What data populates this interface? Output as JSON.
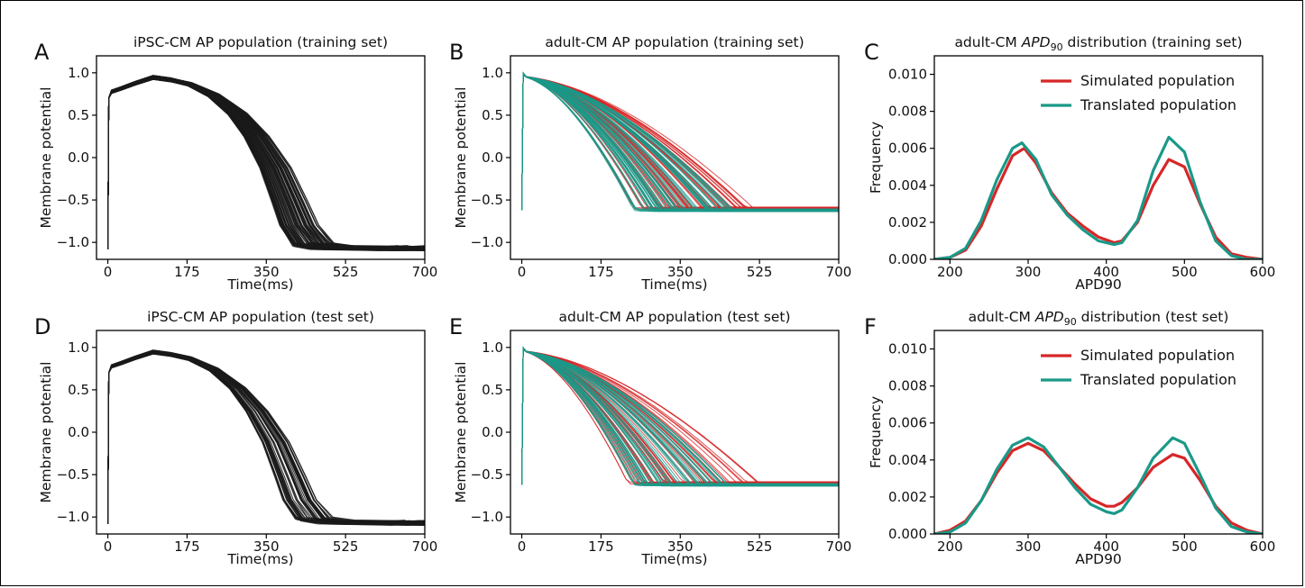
{
  "colors": {
    "ink": "#000000",
    "ipsc": "#1a1a1a",
    "simulated": "#d62728",
    "translated": "#1a9988"
  },
  "chart_data": [
    {
      "type": "line",
      "panel": "A",
      "title": "iPSC-CM AP population (training set)",
      "xlabel": "Time(ms)",
      "ylabel": "Membrane potential",
      "xlim": [
        -25,
        700
      ],
      "ylim": [
        -1.2,
        1.2
      ],
      "xticks": [
        "0",
        "175",
        "350",
        "525",
        "700"
      ],
      "yticks": [
        "-1.0",
        "-0.5",
        "0.0",
        "0.5",
        "1.0"
      ],
      "population": {
        "kind": "ipsc",
        "count": 85,
        "color": "#1a1a1a",
        "template_x": [
          0,
          2,
          8,
          30,
          60,
          100,
          140,
          180,
          230,
          280,
          320,
          360,
          390,
          410,
          440,
          480,
          540,
          600,
          650,
          700
        ],
        "template_y": [
          -1.08,
          0.7,
          0.78,
          0.82,
          0.88,
          0.95,
          0.92,
          0.87,
          0.74,
          0.52,
          0.25,
          -0.12,
          -0.52,
          -0.8,
          -0.98,
          -1.05,
          -1.06,
          -1.07,
          -1.08,
          -1.05
        ],
        "plateau_end_range": [
          0.88,
          1.22
        ],
        "spread": "wide"
      }
    },
    {
      "type": "line",
      "panel": "B",
      "title": "adult-CM AP population (training set)",
      "xlabel": "Time(ms)",
      "ylabel": "Membrane potential",
      "xlim": [
        -25,
        700
      ],
      "ylim": [
        -1.2,
        1.2
      ],
      "xticks": [
        "0",
        "175",
        "350",
        "525",
        "700"
      ],
      "yticks": [
        "-1.0",
        "-0.5",
        "0.0",
        "0.5",
        "1.0"
      ],
      "series": [
        {
          "name": "Simulated population",
          "color": "#d62728",
          "count": 60,
          "apd_range": [
            230,
            520
          ],
          "resting": -0.6
        },
        {
          "name": "Translated population",
          "color": "#1a9988",
          "count": 70,
          "apd_range": [
            240,
            470
          ],
          "resting": -0.62
        }
      ],
      "peak": 1.0,
      "upstroke_min": -0.62
    },
    {
      "type": "line",
      "panel": "C",
      "title": "adult-CM APD90 distribution (training set)",
      "title_parts": [
        "adult-CM ",
        "APD",
        "90",
        " distribution (training set)"
      ],
      "xlabel": "APD90",
      "ylabel": "Frequency",
      "xlim": [
        180,
        600
      ],
      "ylim": [
        0,
        0.011
      ],
      "xticks": [
        "200",
        "300",
        "400",
        "500",
        "600"
      ],
      "yticks": [
        "0.000",
        "0.002",
        "0.004",
        "0.006",
        "0.008",
        "0.010"
      ],
      "legend": "top-right",
      "series": [
        {
          "name": "Simulated population",
          "color": "#d62728",
          "x": [
            180,
            200,
            220,
            240,
            260,
            280,
            295,
            310,
            330,
            350,
            370,
            390,
            410,
            420,
            440,
            460,
            480,
            500,
            520,
            540,
            560,
            580,
            600
          ],
          "y": [
            0.0,
            0.0001,
            0.0005,
            0.0018,
            0.0038,
            0.0056,
            0.006,
            0.0052,
            0.0036,
            0.0025,
            0.0018,
            0.0012,
            0.0009,
            0.001,
            0.002,
            0.004,
            0.0054,
            0.005,
            0.003,
            0.0012,
            0.0003,
            0.0001,
            0.0
          ]
        },
        {
          "name": "Translated population",
          "color": "#1a9988",
          "x": [
            180,
            200,
            220,
            240,
            260,
            280,
            292,
            310,
            330,
            350,
            370,
            390,
            410,
            420,
            440,
            460,
            480,
            500,
            520,
            540,
            560,
            580,
            600
          ],
          "y": [
            0.0,
            0.0001,
            0.0006,
            0.0021,
            0.0043,
            0.006,
            0.0063,
            0.0054,
            0.0035,
            0.0024,
            0.0016,
            0.001,
            0.0008,
            0.0009,
            0.0021,
            0.0048,
            0.0066,
            0.0058,
            0.0031,
            0.001,
            0.0002,
            0.0,
            0.0
          ]
        }
      ]
    },
    {
      "type": "line",
      "panel": "D",
      "title": "iPSC-CM AP population (test set)",
      "xlabel": "Time(ms)",
      "ylabel": "Membrane potential",
      "xlim": [
        -25,
        700
      ],
      "ylim": [
        -1.2,
        1.2
      ],
      "xticks": [
        "0",
        "175",
        "350",
        "525",
        "700"
      ],
      "yticks": [
        "-1.0",
        "-0.5",
        "0.0",
        "0.5",
        "1.0"
      ],
      "population": {
        "kind": "ipsc",
        "count": 55,
        "color": "#1a1a1a",
        "template_x": [
          0,
          2,
          8,
          30,
          60,
          100,
          140,
          180,
          230,
          280,
          320,
          360,
          390,
          410,
          440,
          480,
          540,
          600,
          650,
          700
        ],
        "template_y": [
          -1.08,
          0.7,
          0.78,
          0.82,
          0.88,
          0.95,
          0.92,
          0.87,
          0.74,
          0.52,
          0.25,
          -0.12,
          -0.52,
          -0.8,
          -0.98,
          -1.05,
          -1.06,
          -1.07,
          -1.08,
          -1.05
        ],
        "plateau_end_range": [
          0.9,
          1.2
        ],
        "spread": "narrow"
      }
    },
    {
      "type": "line",
      "panel": "E",
      "title": "adult-CM AP population (test set)",
      "xlabel": "Time(ms)",
      "ylabel": "Membrane potential",
      "xlim": [
        -25,
        700
      ],
      "ylim": [
        -1.2,
        1.2
      ],
      "xticks": [
        "0",
        "175",
        "350",
        "525",
        "700"
      ],
      "yticks": [
        "-1.0",
        "-0.5",
        "0.0",
        "0.5",
        "1.0"
      ],
      "series": [
        {
          "name": "Simulated population",
          "color": "#d62728",
          "count": 50,
          "apd_range": [
            225,
            530
          ],
          "resting": -0.6
        },
        {
          "name": "Translated population",
          "color": "#1a9988",
          "count": 55,
          "apd_range": [
            245,
            465
          ],
          "resting": -0.62
        }
      ],
      "peak": 1.0,
      "upstroke_min": -0.62
    },
    {
      "type": "line",
      "panel": "F",
      "title": "adult-CM APD90 distribution (test set)",
      "title_parts": [
        "adult-CM ",
        "APD",
        "90",
        " distribution (test set)"
      ],
      "xlabel": "APD90",
      "ylabel": "Frequency",
      "xlim": [
        180,
        600
      ],
      "ylim": [
        0,
        0.011
      ],
      "xticks": [
        "200",
        "300",
        "400",
        "500",
        "600"
      ],
      "yticks": [
        "0.000",
        "0.002",
        "0.004",
        "0.006",
        "0.008",
        "0.010"
      ],
      "legend": "top-right",
      "series": [
        {
          "name": "Simulated population",
          "color": "#d62728",
          "x": [
            180,
            200,
            220,
            240,
            260,
            280,
            300,
            320,
            340,
            360,
            380,
            400,
            410,
            420,
            440,
            460,
            485,
            500,
            520,
            540,
            560,
            580,
            600
          ],
          "y": [
            0.0,
            0.0002,
            0.0007,
            0.0018,
            0.0033,
            0.0045,
            0.0049,
            0.0045,
            0.0036,
            0.0027,
            0.0019,
            0.0015,
            0.0015,
            0.0017,
            0.0025,
            0.0036,
            0.0043,
            0.0041,
            0.0029,
            0.0015,
            0.0006,
            0.0002,
            0.0
          ]
        },
        {
          "name": "Translated population",
          "color": "#1a9988",
          "x": [
            180,
            200,
            220,
            240,
            260,
            280,
            300,
            320,
            340,
            360,
            380,
            400,
            410,
            420,
            440,
            460,
            485,
            500,
            520,
            540,
            560,
            580,
            600
          ],
          "y": [
            0.0,
            0.0001,
            0.0006,
            0.0018,
            0.0035,
            0.0048,
            0.0052,
            0.0047,
            0.0036,
            0.0025,
            0.0016,
            0.0012,
            0.0011,
            0.0013,
            0.0025,
            0.0041,
            0.0052,
            0.0049,
            0.0032,
            0.0014,
            0.0004,
            0.0001,
            0.0
          ]
        }
      ]
    }
  ]
}
